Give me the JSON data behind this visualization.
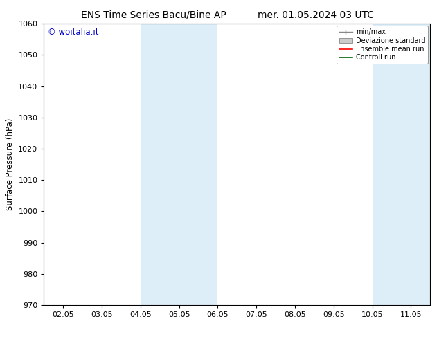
{
  "title_left": "ENS Time Series Bacu/Bine AP",
  "title_right": "mer. 01.05.2024 03 UTC",
  "ylabel": "Surface Pressure (hPa)",
  "ylim": [
    970,
    1060
  ],
  "yticks": [
    970,
    980,
    990,
    1000,
    1010,
    1020,
    1030,
    1040,
    1050,
    1060
  ],
  "xtick_labels": [
    "02.05",
    "03.05",
    "04.05",
    "05.05",
    "06.05",
    "07.05",
    "08.05",
    "09.05",
    "10.05",
    "11.05"
  ],
  "xtick_positions": [
    0,
    1,
    2,
    3,
    4,
    5,
    6,
    7,
    8,
    9
  ],
  "xlim": [
    -0.5,
    9.5
  ],
  "shaded_regions": [
    {
      "xmin": 2.0,
      "xmax": 3.0,
      "color": "#ddeef8"
    },
    {
      "xmin": 3.0,
      "xmax": 4.0,
      "color": "#ddeef8"
    },
    {
      "xmin": 8.0,
      "xmax": 9.0,
      "color": "#ddeef8"
    },
    {
      "xmin": 9.0,
      "xmax": 9.5,
      "color": "#ddeef8"
    }
  ],
  "shade_bands": [
    {
      "xmin": 2.0,
      "xmax": 4.0
    },
    {
      "xmin": 8.0,
      "xmax": 9.5
    }
  ],
  "shade_color": "#ddeef8",
  "legend_labels": [
    "min/max",
    "Deviazione standard",
    "Ensemble mean run",
    "Controll run"
  ],
  "legend_colors": [
    "#aaaaaa",
    "#cccccc",
    "#ff0000",
    "#008000"
  ],
  "watermark": "© woitalia.it",
  "watermark_color": "#0000cc",
  "background_color": "#ffffff",
  "title_fontsize": 10,
  "axis_fontsize": 8.5,
  "tick_fontsize": 8
}
